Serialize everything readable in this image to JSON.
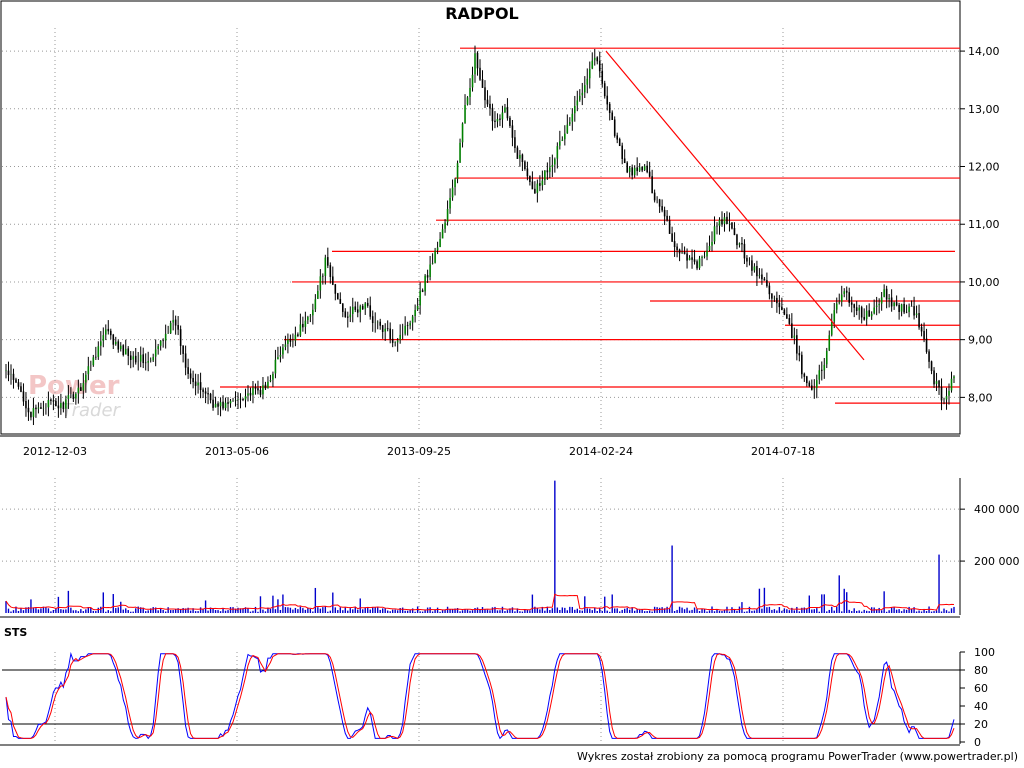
{
  "chart_data": [
    {
      "type": "candlestick",
      "title": "RADPOL",
      "x_tick_labels": [
        "2012-12-03",
        "2013-05-06",
        "2013-09-25",
        "2014-02-24",
        "2014-07-18"
      ],
      "y_tick_labels": [
        "8,00",
        "9,00",
        "10,00",
        "11,00",
        "12,00",
        "13,00",
        "14,00"
      ],
      "ylim": [
        7.4,
        14.4
      ],
      "grid": true,
      "price_path": [
        {
          "i": 0,
          "p": 8.45
        },
        {
          "i": 6,
          "p": 8.1
        },
        {
          "i": 10,
          "p": 7.7
        },
        {
          "i": 16,
          "p": 7.9
        },
        {
          "i": 22,
          "p": 7.85
        },
        {
          "i": 26,
          "p": 8.0
        },
        {
          "i": 30,
          "p": 8.2
        },
        {
          "i": 35,
          "p": 8.7
        },
        {
          "i": 40,
          "p": 9.15
        },
        {
          "i": 45,
          "p": 8.85
        },
        {
          "i": 52,
          "p": 8.7
        },
        {
          "i": 58,
          "p": 8.6
        },
        {
          "i": 64,
          "p": 9.15
        },
        {
          "i": 68,
          "p": 9.3
        },
        {
          "i": 72,
          "p": 8.6
        },
        {
          "i": 76,
          "p": 8.2
        },
        {
          "i": 80,
          "p": 8.1
        },
        {
          "i": 84,
          "p": 7.85
        },
        {
          "i": 90,
          "p": 7.9
        },
        {
          "i": 95,
          "p": 8.05
        },
        {
          "i": 100,
          "p": 8.1
        },
        {
          "i": 104,
          "p": 8.15
        },
        {
          "i": 108,
          "p": 8.6
        },
        {
          "i": 112,
          "p": 8.9
        },
        {
          "i": 116,
          "p": 9.1
        },
        {
          "i": 120,
          "p": 9.3
        },
        {
          "i": 124,
          "p": 9.7
        },
        {
          "i": 128,
          "p": 10.35
        },
        {
          "i": 132,
          "p": 9.8
        },
        {
          "i": 136,
          "p": 9.45
        },
        {
          "i": 140,
          "p": 9.5
        },
        {
          "i": 144,
          "p": 9.6
        },
        {
          "i": 148,
          "p": 9.3
        },
        {
          "i": 152,
          "p": 9.15
        },
        {
          "i": 156,
          "p": 9.0
        },
        {
          "i": 160,
          "p": 9.2
        },
        {
          "i": 164,
          "p": 9.55
        },
        {
          "i": 168,
          "p": 10.05
        },
        {
          "i": 172,
          "p": 10.5
        },
        {
          "i": 176,
          "p": 11.05
        },
        {
          "i": 180,
          "p": 11.8
        },
        {
          "i": 184,
          "p": 13.0
        },
        {
          "i": 188,
          "p": 13.9
        },
        {
          "i": 192,
          "p": 13.1
        },
        {
          "i": 196,
          "p": 12.8
        },
        {
          "i": 200,
          "p": 13.0
        },
        {
          "i": 204,
          "p": 12.3
        },
        {
          "i": 208,
          "p": 12.0
        },
        {
          "i": 212,
          "p": 11.6
        },
        {
          "i": 216,
          "p": 11.9
        },
        {
          "i": 220,
          "p": 12.2
        },
        {
          "i": 224,
          "p": 12.6
        },
        {
          "i": 228,
          "p": 13.0
        },
        {
          "i": 232,
          "p": 13.5
        },
        {
          "i": 236,
          "p": 13.95
        },
        {
          "i": 240,
          "p": 13.3
        },
        {
          "i": 244,
          "p": 12.6
        },
        {
          "i": 248,
          "p": 12.0
        },
        {
          "i": 252,
          "p": 11.9
        },
        {
          "i": 256,
          "p": 12.0
        },
        {
          "i": 260,
          "p": 11.5
        },
        {
          "i": 264,
          "p": 11.2
        },
        {
          "i": 268,
          "p": 10.6
        },
        {
          "i": 272,
          "p": 10.5
        },
        {
          "i": 276,
          "p": 10.3
        },
        {
          "i": 280,
          "p": 10.4
        },
        {
          "i": 284,
          "p": 10.9
        },
        {
          "i": 288,
          "p": 11.1
        },
        {
          "i": 292,
          "p": 10.8
        },
        {
          "i": 296,
          "p": 10.5
        },
        {
          "i": 300,
          "p": 10.2
        },
        {
          "i": 304,
          "p": 10.0
        },
        {
          "i": 308,
          "p": 9.7
        },
        {
          "i": 312,
          "p": 9.4
        },
        {
          "i": 316,
          "p": 9.0
        },
        {
          "i": 320,
          "p": 8.3
        },
        {
          "i": 324,
          "p": 8.2
        },
        {
          "i": 328,
          "p": 8.6
        },
        {
          "i": 332,
          "p": 9.6
        },
        {
          "i": 336,
          "p": 9.8
        },
        {
          "i": 340,
          "p": 9.6
        },
        {
          "i": 344,
          "p": 9.4
        },
        {
          "i": 348,
          "p": 9.5
        },
        {
          "i": 352,
          "p": 9.8
        },
        {
          "i": 356,
          "p": 9.6
        },
        {
          "i": 360,
          "p": 9.55
        },
        {
          "i": 364,
          "p": 9.5
        },
        {
          "i": 368,
          "p": 9.0
        },
        {
          "i": 372,
          "p": 8.3
        },
        {
          "i": 376,
          "p": 7.95
        },
        {
          "i": 380,
          "p": 8.4
        }
      ],
      "support_resistance_levels": [
        14.05,
        11.8,
        11.07,
        10.53,
        10.0,
        9.67,
        9.25,
        9.0,
        8.18,
        7.9
      ],
      "trend_line": {
        "from_date": "2014-02-24",
        "from_price": 14.0,
        "to_price": 8.65
      }
    },
    {
      "type": "bar",
      "title": "",
      "y_tick_labels": [
        "200 000",
        "400 000"
      ],
      "ylim": [
        0,
        520000
      ],
      "notable_spikes": [
        510000,
        260000,
        225000,
        145000
      ],
      "typical_volume": 15000,
      "moving_average_color": "#ff0000",
      "bar_color": "#0000cc"
    },
    {
      "type": "line",
      "title": "STS",
      "y_tick_labels": [
        "0",
        "20",
        "40",
        "60",
        "80",
        "100"
      ],
      "ylim": [
        0,
        100
      ],
      "reference_lines": [
        20,
        80
      ],
      "series": [
        {
          "color": "#0000ff"
        },
        {
          "color": "#ff0000"
        }
      ]
    }
  ],
  "watermark": {
    "main": "Power",
    "sub": "Trader"
  },
  "footer": "Wykres został zrobiony za pomocą programu PowerTrader (www.powertrader.pl)",
  "colors": {
    "candle": "#008000",
    "levels": "#ff0000",
    "grid": "#999999"
  }
}
